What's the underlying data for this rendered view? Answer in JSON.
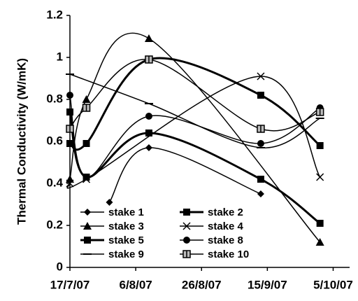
{
  "chart_data": {
    "type": "line",
    "y_label": "Thermal Conductivity (W/mK)",
    "xlim": [
      0,
      85
    ],
    "ylim": [
      0,
      1.2
    ],
    "xticks": [
      {
        "value": 0,
        "label": "17/7/07"
      },
      {
        "value": 20,
        "label": "6/8/07"
      },
      {
        "value": 40,
        "label": "26/8/07"
      },
      {
        "value": 60,
        "label": "15/9/07"
      },
      {
        "value": 80,
        "label": "5/10/07"
      }
    ],
    "yticks": [
      0,
      0.2,
      0.4,
      0.6,
      0.8,
      1,
      1.2
    ],
    "series": [
      {
        "name": "stake 1",
        "color": "#000000",
        "marker": "diamond",
        "line_width": 1.5,
        "x": [
          12,
          24,
          58
        ],
        "values": [
          0.31,
          0.57,
          0.35
        ]
      },
      {
        "name": "stake 2",
        "color": "#000000",
        "marker": "square",
        "line_width": 3,
        "x": [
          0,
          5,
          24,
          58,
          76
        ],
        "values": [
          0.59,
          0.59,
          0.99,
          0.82,
          0.58
        ]
      },
      {
        "name": "stake 3",
        "color": "#000000",
        "marker": "triangle",
        "line_width": 1.5,
        "x": [
          0,
          5,
          24,
          76
        ],
        "values": [
          0.42,
          0.8,
          1.09,
          0.12
        ]
      },
      {
        "name": "stake 4",
        "color": "#000000",
        "marker": "cross",
        "line_width": 1.5,
        "x": [
          0,
          5,
          58,
          76
        ],
        "values": [
          0.4,
          0.42,
          0.91,
          0.43
        ]
      },
      {
        "name": "stake 5",
        "color": "#000000",
        "marker": "square",
        "line_width": 3,
        "x": [
          0,
          5,
          24,
          58,
          76
        ],
        "values": [
          0.74,
          0.43,
          0.64,
          0.42,
          0.21
        ]
      },
      {
        "name": "stake 8",
        "color": "#000000",
        "marker": "circle",
        "line_width": 1.5,
        "x": [
          0,
          5,
          24,
          58,
          76
        ],
        "values": [
          0.82,
          0.43,
          0.72,
          0.59,
          0.76
        ]
      },
      {
        "name": "stake 9",
        "color": "#000000",
        "marker": "dash",
        "line_width": 1.5,
        "x": [
          0,
          24,
          58,
          76
        ],
        "values": [
          0.92,
          0.78,
          0.57,
          0.71
        ]
      },
      {
        "name": "stake 10",
        "color": "#000000",
        "marker": "squareline",
        "line_width": 1.5,
        "x": [
          0,
          5,
          24,
          58,
          76
        ],
        "values": [
          0.66,
          0.76,
          0.99,
          0.66,
          0.74
        ]
      }
    ]
  }
}
